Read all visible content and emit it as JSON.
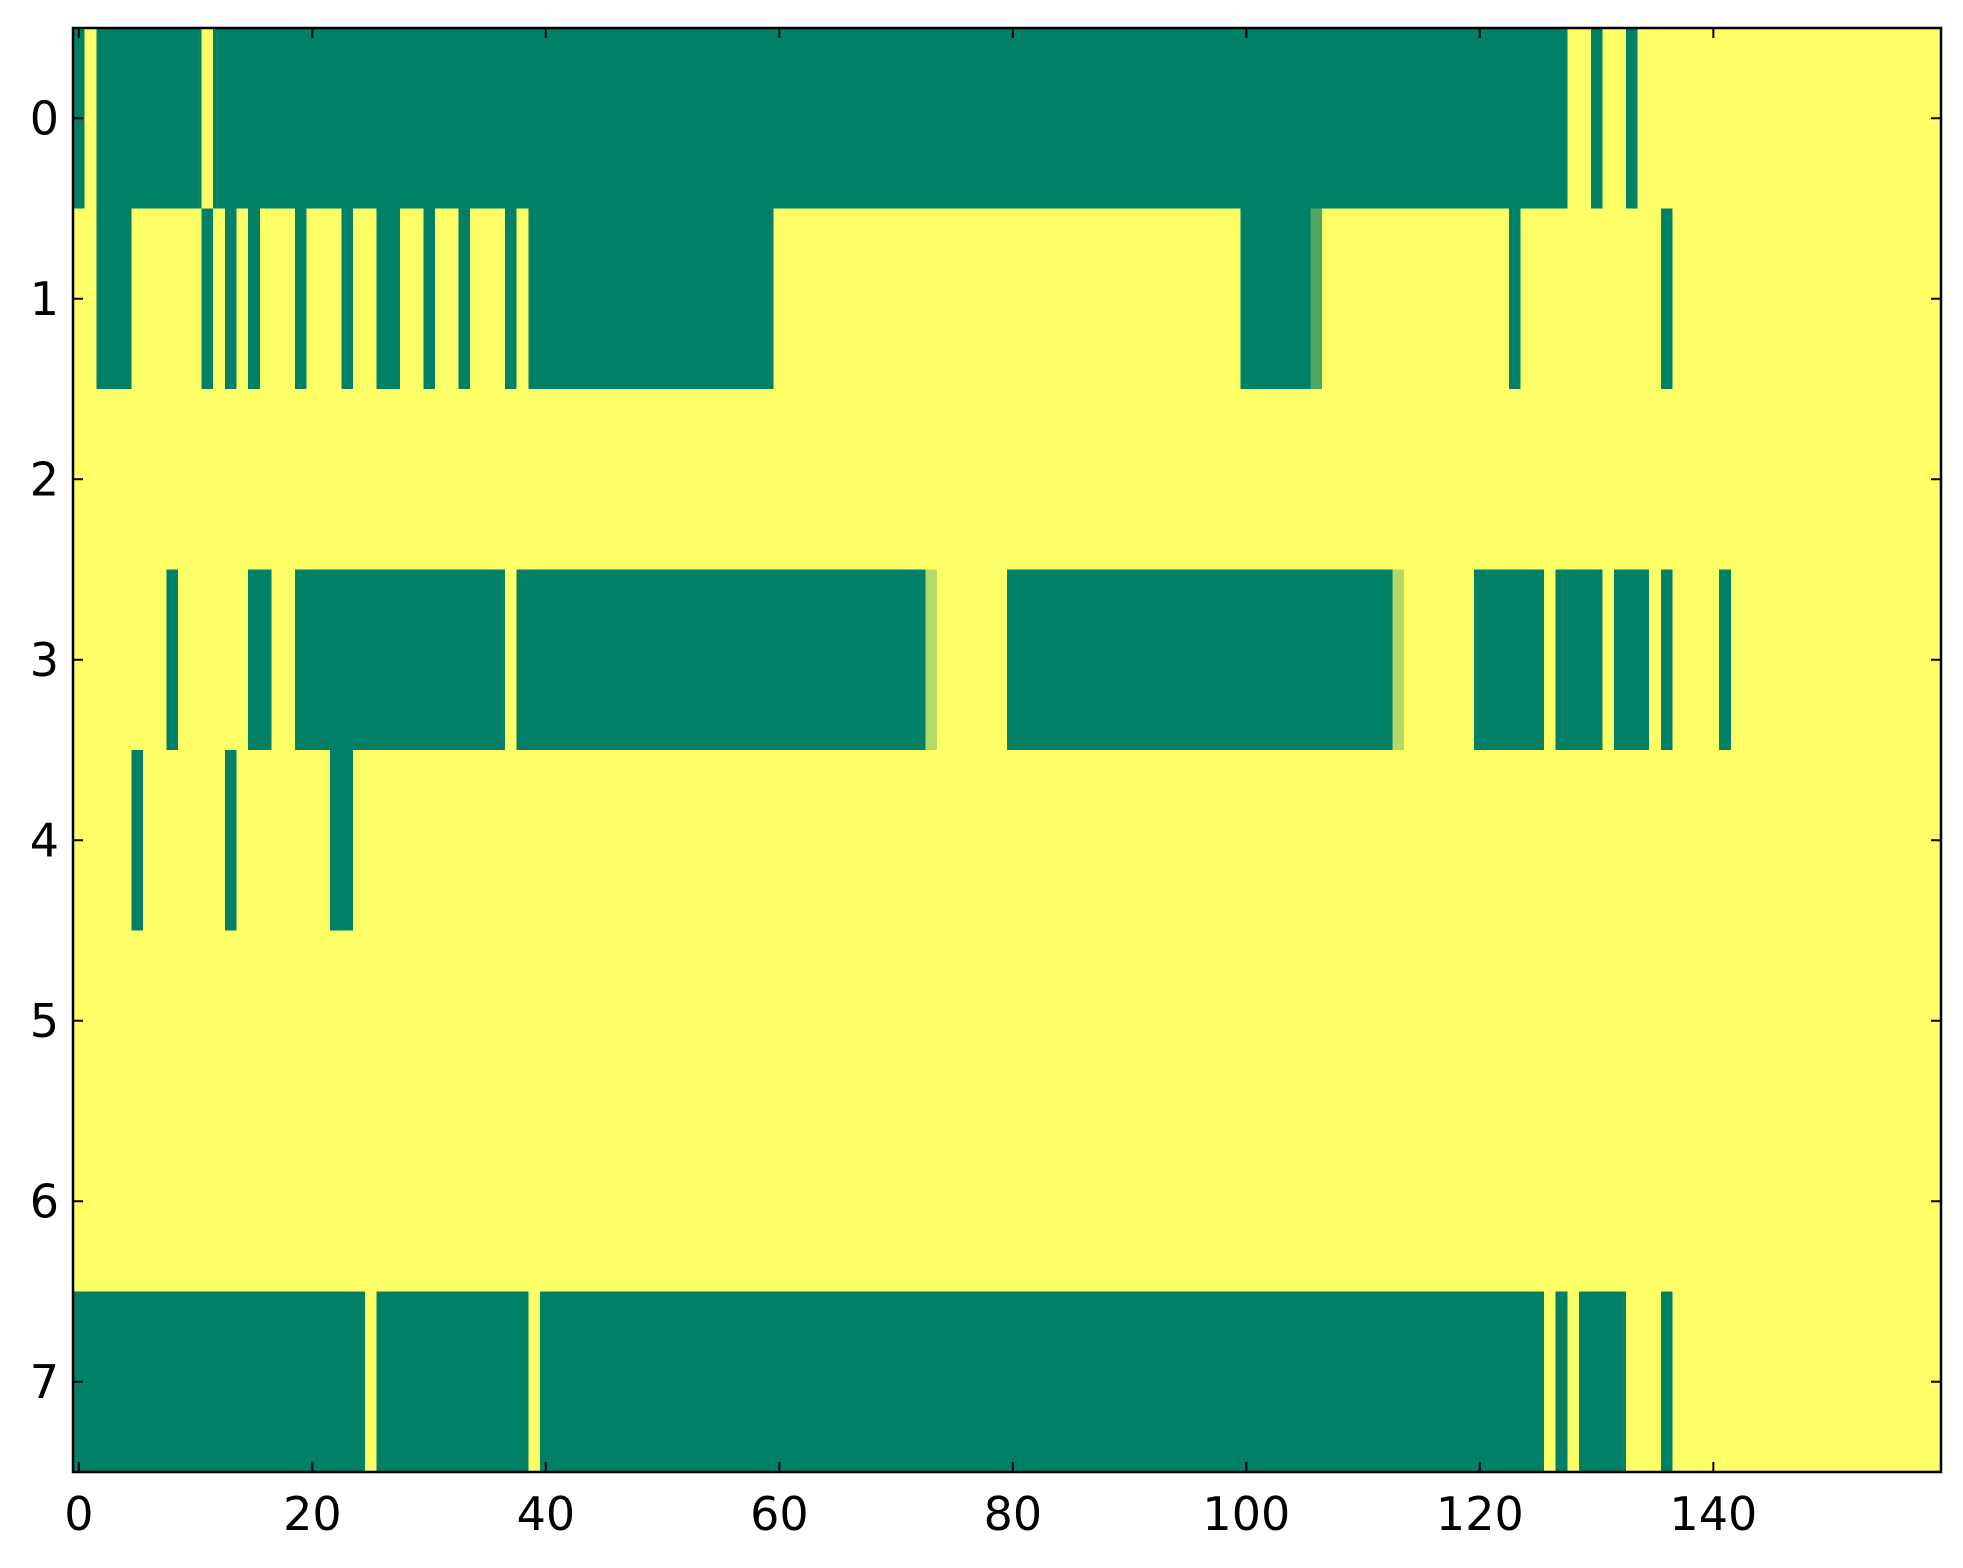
{
  "chart_data": {
    "type": "heatmap",
    "colormap": "summer",
    "xlim": [
      -0.5,
      159.5
    ],
    "ylim": [
      7.5,
      -0.5
    ],
    "xticks": [
      0,
      20,
      40,
      60,
      80,
      100,
      120,
      140
    ],
    "yticks": [
      0,
      1,
      2,
      3,
      4,
      5,
      6,
      7
    ],
    "values": [
      [
        0,
        1,
        0,
        0,
        0,
        0,
        0,
        0,
        0,
        0,
        0,
        1,
        0,
        0,
        0,
        0,
        0,
        0,
        0,
        0,
        0,
        0,
        0,
        0,
        0,
        0,
        0,
        0,
        0,
        0,
        0,
        0,
        0,
        0,
        0,
        0,
        0,
        0,
        0,
        0,
        0,
        0,
        0,
        0,
        0,
        0,
        0,
        0,
        0,
        0,
        0,
        0,
        0,
        0,
        0,
        0,
        0,
        0,
        0,
        0,
        0,
        0,
        0,
        0,
        0,
        0,
        0,
        0,
        0,
        0,
        0,
        0,
        0,
        0,
        0,
        0,
        0,
        0,
        0,
        0,
        0,
        0,
        0,
        0,
        0,
        0,
        0,
        0,
        0,
        0,
        0,
        0,
        0,
        0,
        0,
        0,
        0,
        0,
        0,
        0,
        0,
        0,
        0,
        0,
        0,
        0,
        0,
        0,
        0,
        0,
        0,
        0,
        0,
        0,
        0,
        0,
        0,
        0,
        0,
        0,
        0,
        0,
        0,
        0,
        0,
        0,
        0,
        0,
        1,
        1,
        0,
        1,
        1,
        0,
        1,
        1,
        1,
        1,
        1,
        1,
        1,
        1,
        1,
        1,
        1,
        1,
        1,
        1,
        1,
        1,
        1,
        1,
        1,
        1,
        1,
        1,
        1,
        1,
        1,
        1
      ],
      [
        1,
        1,
        0,
        0,
        0,
        1,
        1,
        1,
        1,
        1,
        1,
        0,
        1,
        0,
        1,
        0,
        1,
        1,
        1,
        0,
        1,
        1,
        1,
        0,
        1,
        1,
        0,
        0,
        1,
        1,
        0,
        1,
        1,
        0,
        1,
        1,
        1,
        0,
        1,
        0,
        0,
        0,
        0,
        0,
        0,
        0,
        0,
        0,
        0,
        0,
        0,
        0,
        0,
        0,
        0,
        0,
        0,
        0,
        0,
        0,
        1,
        1,
        1,
        1,
        1,
        1,
        1,
        1,
        1,
        1,
        1,
        1,
        1,
        1,
        1,
        1,
        1,
        1,
        1,
        1,
        1,
        1,
        1,
        1,
        1,
        1,
        1,
        1,
        1,
        1,
        1,
        1,
        1,
        1,
        1,
        1,
        1,
        1,
        1,
        1,
        0,
        0,
        0,
        0,
        0,
        0,
        0.3,
        1,
        1,
        1,
        1,
        1,
        1,
        1,
        1,
        1,
        1,
        1,
        1,
        1,
        1,
        1,
        1,
        0,
        1,
        1,
        1,
        1,
        1,
        1,
        1,
        1,
        1,
        1,
        1,
        1,
        0,
        1,
        1,
        1,
        1,
        1,
        1,
        1,
        1,
        1,
        1,
        1,
        1,
        1,
        1,
        1,
        1,
        1,
        1,
        1,
        1,
        1,
        1,
        1
      ],
      [
        1,
        1,
        1,
        1,
        1,
        1,
        1,
        1,
        1,
        1,
        1,
        1,
        1,
        1,
        1,
        1,
        1,
        1,
        1,
        1,
        1,
        1,
        1,
        1,
        1,
        1,
        1,
        1,
        1,
        1,
        1,
        1,
        1,
        1,
        1,
        1,
        1,
        1,
        1,
        1,
        1,
        1,
        1,
        1,
        1,
        1,
        1,
        1,
        1,
        1,
        1,
        1,
        1,
        1,
        1,
        1,
        1,
        1,
        1,
        1,
        1,
        1,
        1,
        1,
        1,
        1,
        1,
        1,
        1,
        1,
        1,
        1,
        1,
        1,
        1,
        1,
        1,
        1,
        1,
        1,
        1,
        1,
        1,
        1,
        1,
        1,
        1,
        1,
        1,
        1,
        1,
        1,
        1,
        1,
        1,
        1,
        1,
        1,
        1,
        1,
        1,
        1,
        1,
        1,
        1,
        1,
        1,
        1,
        1,
        1,
        1,
        1,
        1,
        1,
        1,
        1,
        1,
        1,
        1,
        1,
        1,
        1,
        1,
        1,
        1,
        1,
        1,
        1,
        1,
        1,
        1,
        1,
        1,
        1,
        1,
        1,
        1,
        1,
        1,
        1,
        1,
        1,
        1,
        1,
        1,
        1,
        1,
        1,
        1,
        1,
        1,
        1,
        1,
        1,
        1,
        1,
        1,
        1,
        1,
        1
      ],
      [
        1,
        1,
        1,
        1,
        1,
        1,
        1,
        1,
        0,
        1,
        1,
        1,
        1,
        1,
        1,
        0,
        0,
        1,
        1,
        0,
        0,
        0,
        0,
        0,
        0,
        0,
        0,
        0,
        0,
        0,
        0,
        0,
        0,
        0,
        0,
        0,
        0,
        1,
        0,
        0,
        0,
        0,
        0,
        0,
        0,
        0,
        0,
        0,
        0,
        0,
        0,
        0,
        0,
        0,
        0,
        0,
        0,
        0,
        0,
        0,
        0,
        0,
        0,
        0,
        0,
        0,
        0,
        0,
        0,
        0,
        0,
        0,
        0,
        0.7,
        1,
        1,
        1,
        1,
        1,
        1,
        0,
        0,
        0,
        0,
        0,
        0,
        0,
        0,
        0,
        0,
        0,
        0,
        0,
        0,
        0,
        0,
        0,
        0,
        0,
        0,
        0,
        0,
        0,
        0,
        0,
        0,
        0,
        0,
        0,
        0,
        0,
        0,
        0,
        0.7,
        1,
        1,
        1,
        1,
        1,
        1,
        0,
        0,
        0,
        0,
        0,
        0,
        1,
        0,
        0,
        0,
        0,
        1,
        0,
        0,
        0,
        1,
        0,
        1,
        1,
        1,
        1,
        0,
        1,
        1,
        1,
        1,
        1,
        1,
        1,
        1,
        1,
        1,
        1,
        1,
        1,
        1,
        1,
        1,
        1,
        1
      ],
      [
        1,
        1,
        1,
        1,
        1,
        0,
        1,
        1,
        1,
        1,
        1,
        1,
        1,
        0,
        1,
        1,
        1,
        1,
        1,
        1,
        1,
        1,
        0,
        0,
        1,
        1,
        1,
        1,
        1,
        1,
        1,
        1,
        1,
        1,
        1,
        1,
        1,
        1,
        1,
        1,
        1,
        1,
        1,
        1,
        1,
        1,
        1,
        1,
        1,
        1,
        1,
        1,
        1,
        1,
        1,
        1,
        1,
        1,
        1,
        1,
        1,
        1,
        1,
        1,
        1,
        1,
        1,
        1,
        1,
        1,
        1,
        1,
        1,
        1,
        1,
        1,
        1,
        1,
        1,
        1,
        1,
        1,
        1,
        1,
        1,
        1,
        1,
        1,
        1,
        1,
        1,
        1,
        1,
        1,
        1,
        1,
        1,
        1,
        1,
        1,
        1,
        1,
        1,
        1,
        1,
        1,
        1,
        1,
        1,
        1,
        1,
        1,
        1,
        1,
        1,
        1,
        1,
        1,
        1,
        1,
        1,
        1,
        1,
        1,
        1,
        1,
        1,
        1,
        1,
        1,
        1,
        1,
        1,
        1,
        1,
        1,
        1,
        1,
        1,
        1,
        1,
        1,
        1,
        1,
        1,
        1,
        1,
        1,
        1,
        1,
        1,
        1,
        1,
        1,
        1,
        1,
        1,
        1,
        1,
        1
      ],
      [
        1,
        1,
        1,
        1,
        1,
        1,
        1,
        1,
        1,
        1,
        1,
        1,
        1,
        1,
        1,
        1,
        1,
        1,
        1,
        1,
        1,
        1,
        1,
        1,
        1,
        1,
        1,
        1,
        1,
        1,
        1,
        1,
        1,
        1,
        1,
        1,
        1,
        1,
        1,
        1,
        1,
        1,
        1,
        1,
        1,
        1,
        1,
        1,
        1,
        1,
        1,
        1,
        1,
        1,
        1,
        1,
        1,
        1,
        1,
        1,
        1,
        1,
        1,
        1,
        1,
        1,
        1,
        1,
        1,
        1,
        1,
        1,
        1,
        1,
        1,
        1,
        1,
        1,
        1,
        1,
        1,
        1,
        1,
        1,
        1,
        1,
        1,
        1,
        1,
        1,
        1,
        1,
        1,
        1,
        1,
        1,
        1,
        1,
        1,
        1,
        1,
        1,
        1,
        1,
        1,
        1,
        1,
        1,
        1,
        1,
        1,
        1,
        1,
        1,
        1,
        1,
        1,
        1,
        1,
        1,
        1,
        1,
        1,
        1,
        1,
        1,
        1,
        1,
        1,
        1,
        1,
        1,
        1,
        1,
        1,
        1,
        1,
        1,
        1,
        1,
        1,
        1,
        1,
        1,
        1,
        1,
        1,
        1,
        1,
        1,
        1,
        1,
        1,
        1,
        1,
        1,
        1,
        1,
        1,
        1
      ],
      [
        1,
        1,
        1,
        1,
        1,
        1,
        1,
        1,
        1,
        1,
        1,
        1,
        1,
        1,
        1,
        1,
        1,
        1,
        1,
        1,
        1,
        1,
        1,
        1,
        1,
        1,
        1,
        1,
        1,
        1,
        1,
        1,
        1,
        1,
        1,
        1,
        1,
        1,
        1,
        1,
        1,
        1,
        1,
        1,
        1,
        1,
        1,
        1,
        1,
        1,
        1,
        1,
        1,
        1,
        1,
        1,
        1,
        1,
        1,
        1,
        1,
        1,
        1,
        1,
        1,
        1,
        1,
        1,
        1,
        1,
        1,
        1,
        1,
        1,
        1,
        1,
        1,
        1,
        1,
        1,
        1,
        1,
        1,
        1,
        1,
        1,
        1,
        1,
        1,
        1,
        1,
        1,
        1,
        1,
        1,
        1,
        1,
        1,
        1,
        1,
        1,
        1,
        1,
        1,
        1,
        1,
        1,
        1,
        1,
        1,
        1,
        1,
        1,
        1,
        1,
        1,
        1,
        1,
        1,
        1,
        1,
        1,
        1,
        1,
        1,
        1,
        1,
        1,
        1,
        1,
        1,
        1,
        1,
        1,
        1,
        1,
        1,
        1,
        1,
        1,
        1,
        1,
        1,
        1,
        1,
        1,
        1,
        1,
        1,
        1,
        1,
        1,
        1,
        1,
        1,
        1,
        1,
        1,
        1,
        1
      ],
      [
        0,
        0,
        0,
        0,
        0,
        0,
        0,
        0,
        0,
        0,
        0,
        0,
        0,
        0,
        0,
        0,
        0,
        0,
        0,
        0,
        0,
        0,
        0,
        0,
        0,
        1,
        0,
        0,
        0,
        0,
        0,
        0,
        0,
        0,
        0,
        0,
        0,
        0,
        0,
        1,
        0,
        0,
        0,
        0,
        0,
        0,
        0,
        0,
        0,
        0,
        0,
        0,
        0,
        0,
        0,
        0,
        0,
        0,
        0,
        0,
        0,
        0,
        0,
        0,
        0,
        0,
        0,
        0,
        0,
        0,
        0,
        0,
        0,
        0,
        0,
        0,
        0,
        0,
        0,
        0,
        0,
        0,
        0,
        0,
        0,
        0,
        0,
        0,
        0,
        0,
        0,
        0,
        0,
        0,
        0,
        0,
        0,
        0,
        0,
        0,
        0,
        0,
        0,
        0,
        0,
        0,
        0,
        0,
        0,
        0,
        0,
        0,
        0,
        0,
        0,
        0,
        0,
        0,
        0,
        0,
        0,
        0,
        0,
        0,
        0,
        0,
        1,
        0,
        1,
        0,
        0,
        0,
        0,
        1,
        1,
        1,
        0,
        1,
        1,
        1,
        1,
        1,
        1,
        1,
        1,
        1,
        1,
        1,
        1,
        1,
        1,
        1,
        1,
        1,
        1,
        1,
        1,
        1,
        1,
        1
      ]
    ]
  }
}
